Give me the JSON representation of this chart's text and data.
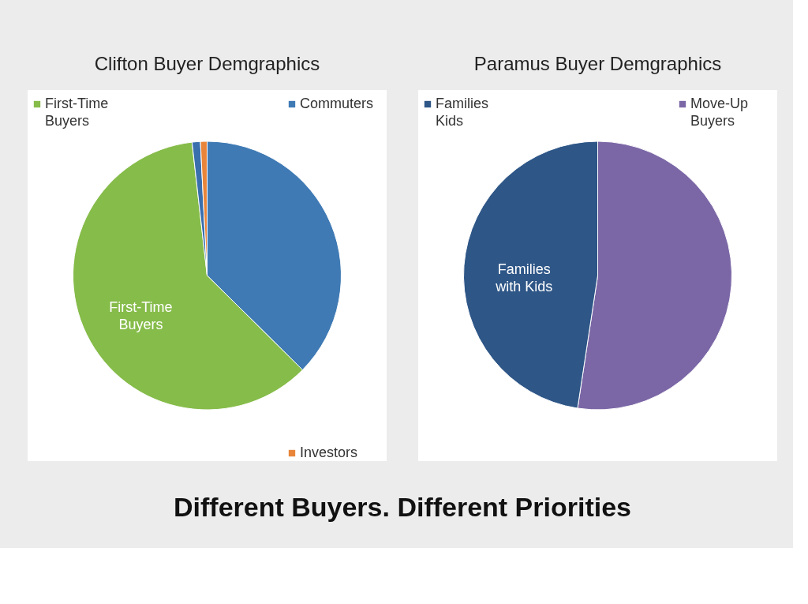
{
  "chart_data": [
    {
      "type": "pie",
      "title": "Clifton Buyer Demgraphics",
      "categories": [
        "Commuters",
        "First-Time Buyers",
        null,
        "Investors"
      ],
      "values": [
        37.4,
        60.8,
        1.0,
        0.8
      ],
      "colors": [
        "#3f7ab4",
        "#86bc4a",
        "#3a6fae",
        "#e8853a"
      ],
      "annotations": [
        {
          "text": "First-Time Buyers",
          "x": "First-Time Buyers"
        }
      ],
      "legend": "bottom left"
    },
    {
      "type": "pie",
      "title": "Paramus Buyer Demgraphics",
      "categories": [
        "Move-Up Buyers",
        "Families Kids"
      ],
      "values": [
        52.4,
        47.6
      ],
      "colors": [
        "#7b67a6",
        "#2e5687"
      ],
      "annotations": [
        {
          "text": "Families with Kids",
          "x": "Families Kids"
        }
      ],
      "legend": "top"
    },
    {
      "type": "other",
      "title": "Different Buyers. Different Priorities"
    }
  ]
}
